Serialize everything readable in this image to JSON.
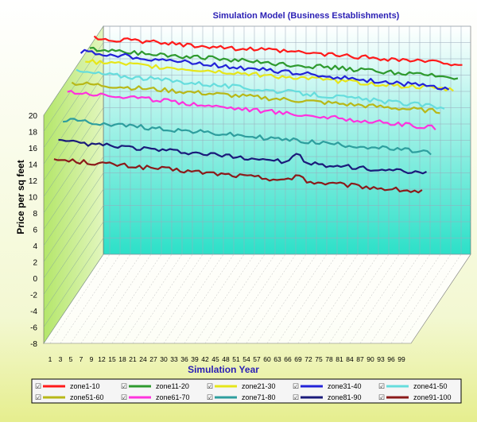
{
  "chart_data": {
    "type": "line",
    "title": "Simulation Model (Business Establishments)",
    "xlabel": "Simulation Year",
    "ylabel": "Price per sq feet",
    "ylim": [
      -8,
      20
    ],
    "y_ticks": [
      "20",
      "18",
      "16",
      "14",
      "12",
      "10",
      "8",
      "6",
      "4",
      "2",
      "0",
      "-2",
      "-4",
      "-6",
      "-8"
    ],
    "x_ticks": [
      "1",
      "3",
      "5",
      "7",
      "9",
      "12",
      "15",
      "18",
      "21",
      "24",
      "27",
      "30",
      "33",
      "36",
      "39",
      "42",
      "45",
      "48",
      "51",
      "54",
      "57",
      "60",
      "63",
      "66",
      "69",
      "72",
      "75",
      "78",
      "81",
      "84",
      "87",
      "90",
      "93",
      "96",
      "99"
    ],
    "grid": true,
    "legend_position": "bottom",
    "legend_marker": "☑",
    "series": [
      {
        "name": "zone1-10",
        "color": "#ff1a1a",
        "start": 20.5,
        "end": 17.3
      },
      {
        "name": "zone11-20",
        "color": "#2e9a2e",
        "start": 20.0,
        "end": 16.5
      },
      {
        "name": "zone21-30",
        "color": "#e6e61a",
        "start": 19.3,
        "end": 15.8
      },
      {
        "name": "zone31-40",
        "color": "#2323d8",
        "start": 21.3,
        "end": 16.8
      },
      {
        "name": "zone41-50",
        "color": "#66dddd",
        "start": 19.7,
        "end": 15.3
      },
      {
        "name": "zone51-60",
        "color": "#b8b818",
        "start": 19.1,
        "end": 15.6
      },
      {
        "name": "zone61-70",
        "color": "#ff33dd",
        "start": 18.9,
        "end": 14.4
      },
      {
        "name": "zone71-80",
        "color": "#2e9e9e",
        "start": 16.2,
        "end": 12.2
      },
      {
        "name": "zone81-90",
        "color": "#1a1a7a",
        "start": 14.4,
        "end": 10.4
      },
      {
        "name": "zone91-100",
        "color": "#8b1a1a",
        "start": 13.0,
        "end": 9.0
      }
    ]
  }
}
